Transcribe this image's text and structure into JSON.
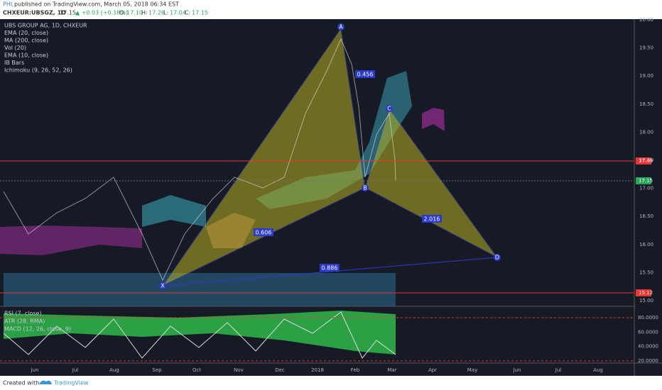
{
  "header": {
    "user": "PHL",
    "published": "published on TradingView.com, March 05, 2018 06:34 EST"
  },
  "symbol_bar": {
    "symbol": "CHXEUR:UBSGZ, 1D",
    "last": "17.15",
    "change": "▲ +0.03 (+0.18%)",
    "open_label": "O:",
    "open": "17.10",
    "high_label": "H:",
    "high": "17.26",
    "low_label": "L:",
    "low": "17.04",
    "close_label": "C:",
    "close": "17.15"
  },
  "legend": [
    "UBS GROUP AG, 1D, CHXEUR",
    "EMA (20, close)",
    "MA (200, close)",
    "Vol (20)",
    "EMA (10, close)",
    "IB Bars",
    "Ichimoku (9, 26, 52, 26)"
  ],
  "price_axis": [
    "20.00",
    "19.50",
    "19.00",
    "18.50",
    "18.00",
    "17.50",
    "17.00",
    "16.50",
    "16.00",
    "15.50",
    "15.00"
  ],
  "price_markers": [
    "17.49",
    "17.15",
    "15.12"
  ],
  "pattern_points": [
    "A",
    "C",
    "B",
    "X",
    "D"
  ],
  "ratios": [
    "0.456",
    "0.606",
    "2.016",
    "0.886"
  ],
  "lower_legend": [
    "RSI (7, close)",
    "ATR (28, RMA)",
    "MACD (12, 26, close, 9)"
  ],
  "lower_axis": [
    "80.0000",
    "60.0000",
    "40.0000",
    "20.0000"
  ],
  "months": [
    "Jun",
    "Jul",
    "Aug",
    "Sep",
    "Oct",
    "Nov",
    "Dec",
    "2018",
    "Feb",
    "Mar",
    "Apr",
    "May",
    "Jun",
    "Jul",
    "Aug"
  ],
  "footer": {
    "created": "Created with",
    "brand": "TradingView"
  }
}
